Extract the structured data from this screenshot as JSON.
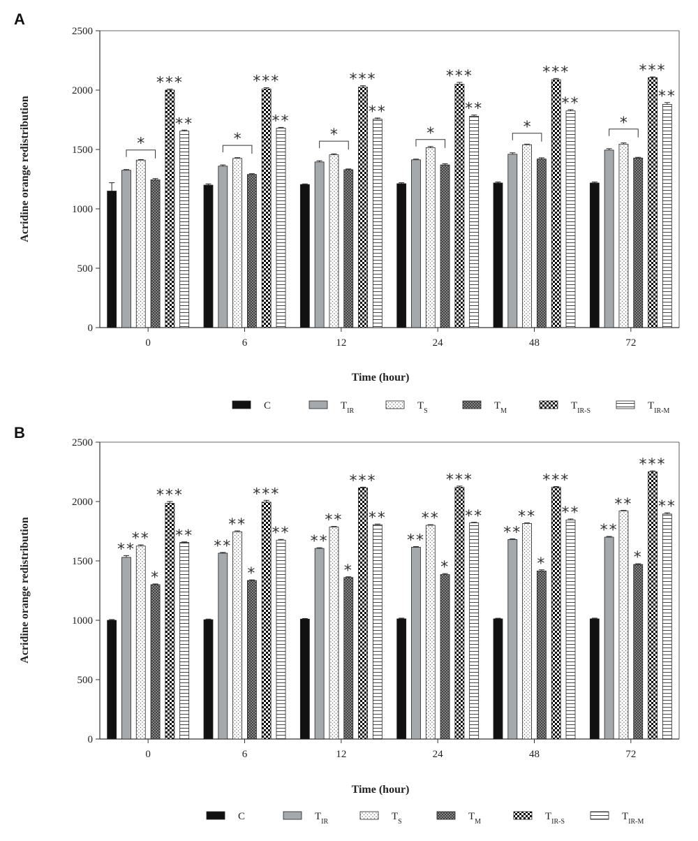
{
  "colors": {
    "C": "#111111",
    "T_IR": "#a4a9ad",
    "T_S": "#ffffff",
    "T_M": "#6e6e6e",
    "T_IR-S": "#000000",
    "T_IR-M": "#ffffff",
    "axis": "#333333",
    "star": "#333333"
  },
  "legend": [
    {
      "key": "C",
      "main": "C",
      "sub": "",
      "pattern": "solid-black"
    },
    {
      "key": "T_IR",
      "main": "T",
      "sub": "IR",
      "pattern": "solid-gray"
    },
    {
      "key": "T_S",
      "main": "T",
      "sub": "S",
      "pattern": "dots"
    },
    {
      "key": "T_M",
      "main": "T",
      "sub": "M",
      "pattern": "crosshatch"
    },
    {
      "key": "T_IR-S",
      "main": "T",
      "sub": "IR-S",
      "pattern": "checker"
    },
    {
      "key": "T_IR-M",
      "main": "T",
      "sub": "IR-M",
      "pattern": "hlines"
    }
  ],
  "chart_data": [
    {
      "type": "bar",
      "panel_label": "A",
      "title": "",
      "xlabel": "Time (hour)",
      "ylabel": "Acridine orange redistribution",
      "ylim": [
        0,
        2500
      ],
      "yticks": [
        0,
        500,
        1000,
        1500,
        2000,
        2500
      ],
      "categories": [
        "0",
        "6",
        "12",
        "24",
        "48",
        "72"
      ],
      "series": [
        {
          "name": "C",
          "values": [
            1150,
            1200,
            1205,
            1212,
            1218,
            1218
          ],
          "errors": [
            70,
            10,
            5,
            8,
            8,
            8
          ]
        },
        {
          "name": "TIR",
          "values": [
            1325,
            1360,
            1395,
            1413,
            1460,
            1495
          ],
          "errors": [
            6,
            10,
            10,
            6,
            12,
            12
          ]
        },
        {
          "name": "TS",
          "values": [
            1410,
            1425,
            1455,
            1515,
            1540,
            1545
          ],
          "errors": [
            5,
            6,
            8,
            10,
            5,
            10
          ]
        },
        {
          "name": "TM",
          "values": [
            1245,
            1290,
            1330,
            1370,
            1420,
            1428
          ],
          "errors": [
            10,
            6,
            6,
            10,
            10,
            6
          ]
        },
        {
          "name": "TIR-S",
          "values": [
            2000,
            2010,
            2025,
            2050,
            2088,
            2105
          ],
          "errors": [
            8,
            10,
            12,
            15,
            10,
            6
          ]
        },
        {
          "name": "TIR-M",
          "values": [
            1655,
            1680,
            1755,
            1780,
            1825,
            1880
          ],
          "errors": [
            8,
            6,
            10,
            10,
            10,
            15
          ]
        }
      ],
      "annotations": {
        "brackets": [
          {
            "from": "TIR",
            "to": "TM",
            "y": 1465,
            "marks": "*"
          }
        ],
        "bar_stars": [
          {
            "series": "TIR-S",
            "marks": "***"
          },
          {
            "series": "TIR-M",
            "marks": "**"
          }
        ]
      }
    },
    {
      "type": "bar",
      "panel_label": "B",
      "title": "",
      "xlabel": "Time (hour)",
      "ylabel": "Acridine orange redistribution",
      "ylim": [
        0,
        2500
      ],
      "yticks": [
        0,
        500,
        1000,
        1500,
        2000,
        2500
      ],
      "categories": [
        "0",
        "6",
        "12",
        "24",
        "48",
        "72"
      ],
      "series": [
        {
          "name": "C",
          "values": [
            1000,
            1005,
            1010,
            1012,
            1012,
            1012
          ],
          "errors": [
            6,
            5,
            5,
            6,
            5,
            6
          ]
        },
        {
          "name": "TIR",
          "values": [
            1530,
            1565,
            1605,
            1615,
            1680,
            1700
          ],
          "errors": [
            15,
            6,
            6,
            6,
            6,
            6
          ]
        },
        {
          "name": "TS",
          "values": [
            1625,
            1745,
            1785,
            1800,
            1815,
            1920
          ],
          "errors": [
            10,
            8,
            5,
            5,
            5,
            5
          ]
        },
        {
          "name": "TM",
          "values": [
            1300,
            1335,
            1360,
            1385,
            1415,
            1470
          ],
          "errors": [
            6,
            5,
            6,
            8,
            10,
            6
          ]
        },
        {
          "name": "TIR-S",
          "values": [
            1985,
            1995,
            2115,
            2120,
            2120,
            2250
          ],
          "errors": [
            15,
            15,
            6,
            10,
            6,
            8
          ]
        },
        {
          "name": "TIR-M",
          "values": [
            1655,
            1675,
            1805,
            1820,
            1845,
            1895
          ],
          "errors": [
            5,
            6,
            5,
            5,
            8,
            10
          ]
        }
      ],
      "annotations": {
        "brackets": [],
        "bar_stars": [
          {
            "series": "TIR",
            "marks": "**"
          },
          {
            "series": "TS",
            "marks": "**"
          },
          {
            "series": "TM",
            "marks": "*"
          },
          {
            "series": "TIR-S",
            "marks": "***"
          },
          {
            "series": "TIR-M",
            "marks": "**"
          }
        ]
      }
    }
  ]
}
